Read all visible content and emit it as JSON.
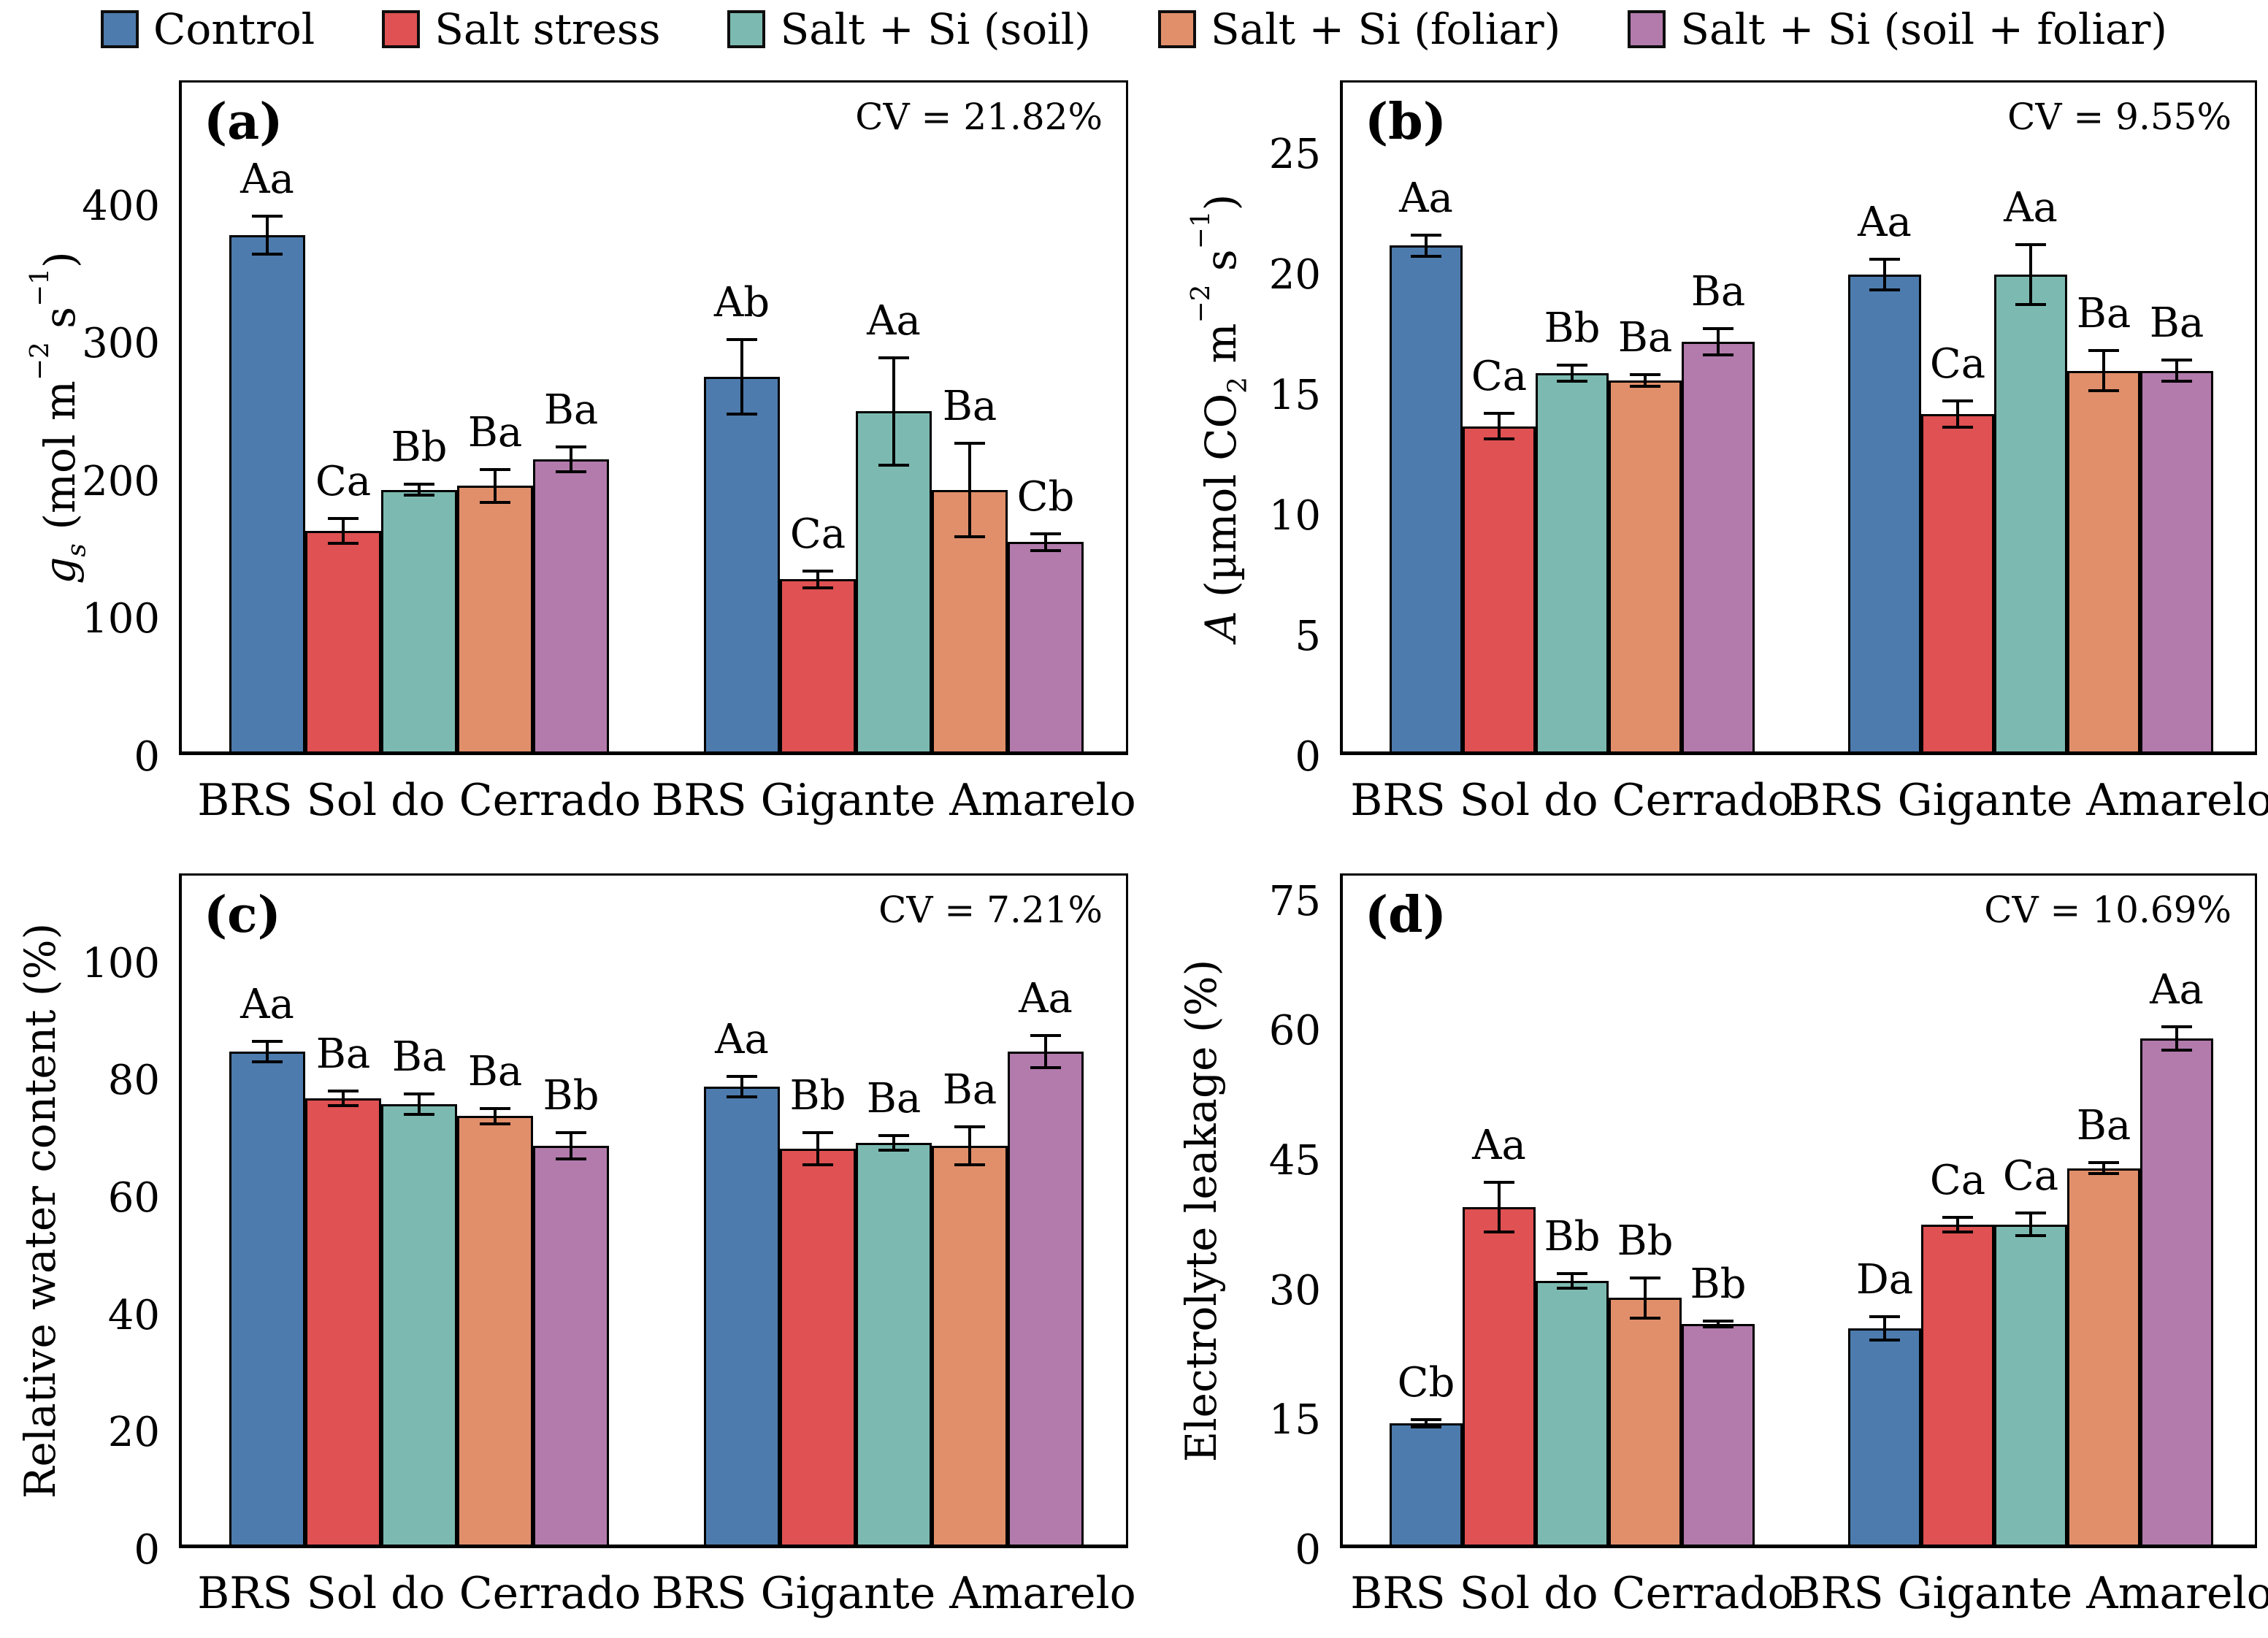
{
  "legend": [
    {
      "label": "Control",
      "color": "#4D7BAD"
    },
    {
      "label": "Salt stress",
      "color": "#DF5152"
    },
    {
      "label": "Salt + Si (soil)",
      "color": "#7CBAB1"
    },
    {
      "label": "Salt + Si (foliar)",
      "color": "#E18F6B"
    },
    {
      "label": "Salt + Si (soil + foliar)",
      "color": "#B27BAC"
    }
  ],
  "chart_data": [
    {
      "id": "a",
      "type": "bar",
      "panel_letter": "(a)",
      "annotation": "CV = 21.82%",
      "ylabel_segments": [
        {
          "t": "g",
          "s": "i"
        },
        {
          "t": "s",
          "s": "isub"
        },
        {
          "t": " (mol m",
          "s": ""
        },
        {
          "t": "−2",
          "s": "sup"
        },
        {
          "t": " s",
          "s": ""
        },
        {
          "t": "−1",
          "s": "sup"
        },
        {
          "t": ")",
          "s": ""
        }
      ],
      "categories": [
        "BRS Sol do Cerrado",
        "BRS Gigante Amarelo"
      ],
      "yticks": [
        0,
        100,
        200,
        300,
        400
      ],
      "ylim": [
        0,
        490
      ],
      "grid": false,
      "series": [
        {
          "name": "Control",
          "values": [
            375,
            272
          ],
          "errors": [
            15,
            28
          ],
          "sig_labels": [
            "Aa",
            "Ab"
          ]
        },
        {
          "name": "Salt stress",
          "values": [
            160,
            125
          ],
          "errors": [
            10,
            7
          ],
          "sig_labels": [
            "Ca",
            "Ca"
          ]
        },
        {
          "name": "Salt + Si (soil)",
          "values": [
            190,
            247
          ],
          "errors": [
            5,
            40
          ],
          "sig_labels": [
            "Bb",
            "Aa"
          ]
        },
        {
          "name": "Salt + Si (foliar)",
          "values": [
            193,
            190
          ],
          "errors": [
            13,
            35
          ],
          "sig_labels": [
            "Ba",
            "Ba"
          ]
        },
        {
          "name": "Salt + Si (soil + foliar)",
          "values": [
            212,
            152
          ],
          "errors": [
            10,
            7
          ],
          "sig_labels": [
            "Ba",
            "Cb"
          ]
        }
      ]
    },
    {
      "id": "b",
      "type": "bar",
      "panel_letter": "(b)",
      "annotation": "CV = 9.55%",
      "ylabel_segments": [
        {
          "t": "A",
          "s": "i"
        },
        {
          "t": " (µmol CO",
          "s": ""
        },
        {
          "t": "2",
          "s": "sub"
        },
        {
          "t": " m",
          "s": ""
        },
        {
          "t": "−2",
          "s": "sup"
        },
        {
          "t": " s",
          "s": ""
        },
        {
          "t": "−1",
          "s": "sup"
        },
        {
          "t": ")",
          "s": ""
        }
      ],
      "categories": [
        "BRS Sol do Cerrado",
        "BRS Gigante Amarelo"
      ],
      "yticks": [
        0,
        5,
        10,
        15,
        20,
        25
      ],
      "ylim": [
        0,
        28
      ],
      "grid": false,
      "series": [
        {
          "name": "Control",
          "values": [
            21.0,
            19.8
          ],
          "errors": [
            0.5,
            0.7
          ],
          "sig_labels": [
            "Aa",
            "Aa"
          ]
        },
        {
          "name": "Salt stress",
          "values": [
            13.5,
            14.0
          ],
          "errors": [
            0.6,
            0.6
          ],
          "sig_labels": [
            "Ca",
            "Ca"
          ]
        },
        {
          "name": "Salt + Si (soil)",
          "values": [
            15.7,
            19.8
          ],
          "errors": [
            0.4,
            1.3
          ],
          "sig_labels": [
            "Bb",
            "Aa"
          ]
        },
        {
          "name": "Salt + Si (foliar)",
          "values": [
            15.4,
            15.8
          ],
          "errors": [
            0.3,
            0.9
          ],
          "sig_labels": [
            "Ba",
            "Ba"
          ]
        },
        {
          "name": "Salt + Si (soil + foliar)",
          "values": [
            17.0,
            15.8
          ],
          "errors": [
            0.6,
            0.5
          ],
          "sig_labels": [
            "Ba",
            "Ba"
          ]
        }
      ]
    },
    {
      "id": "c",
      "type": "bar",
      "panel_letter": "(c)",
      "annotation": "CV = 7.21%",
      "ylabel_segments": [
        {
          "t": "Relative water content (%)",
          "s": ""
        }
      ],
      "categories": [
        "BRS Sol do Cerrado",
        "BRS Gigante Amarelo"
      ],
      "yticks": [
        0,
        20,
        40,
        60,
        80,
        100
      ],
      "ylim": [
        0,
        115
      ],
      "grid": false,
      "series": [
        {
          "name": "Control",
          "values": [
            84,
            78
          ],
          "errors": [
            2,
            2
          ],
          "sig_labels": [
            "Aa",
            "Aa"
          ]
        },
        {
          "name": "Salt stress",
          "values": [
            76,
            67.5
          ],
          "errors": [
            1.5,
            3
          ],
          "sig_labels": [
            "Ba",
            "Bb"
          ]
        },
        {
          "name": "Salt + Si (soil)",
          "values": [
            75,
            68.5
          ],
          "errors": [
            2,
            1.5
          ],
          "sig_labels": [
            "Ba",
            "Ba"
          ]
        },
        {
          "name": "Salt + Si (foliar)",
          "values": [
            73,
            68
          ],
          "errors": [
            1.5,
            3.5
          ],
          "sig_labels": [
            "Ba",
            "Ba"
          ]
        },
        {
          "name": "Salt + Si (soil + foliar)",
          "values": [
            68,
            84
          ],
          "errors": [
            2.5,
            3
          ],
          "sig_labels": [
            "Bb",
            "Aa"
          ]
        }
      ]
    },
    {
      "id": "d",
      "type": "bar",
      "panel_letter": "(d)",
      "annotation": "CV = 10.69%",
      "ylabel_segments": [
        {
          "t": "Electrolyte leakage (%)",
          "s": ""
        }
      ],
      "categories": [
        "BRS Sol do Cerrado",
        "BRS Gigante Amarelo"
      ],
      "yticks": [
        0,
        15,
        30,
        45,
        60,
        75
      ],
      "ylim": [
        0,
        78
      ],
      "grid": false,
      "series": [
        {
          "name": "Control",
          "values": [
            14,
            25
          ],
          "errors": [
            0.6,
            1.5
          ],
          "sig_labels": [
            "Cb",
            "Da"
          ]
        },
        {
          "name": "Salt stress",
          "values": [
            39,
            37
          ],
          "errors": [
            3,
            1
          ],
          "sig_labels": [
            "Aa",
            "Ca"
          ]
        },
        {
          "name": "Salt + Si (soil)",
          "values": [
            30.5,
            37
          ],
          "errors": [
            1,
            1.5
          ],
          "sig_labels": [
            "Bb",
            "Ca"
          ]
        },
        {
          "name": "Salt + Si (foliar)",
          "values": [
            28.5,
            43.5
          ],
          "errors": [
            2.5,
            0.8
          ],
          "sig_labels": [
            "Bb",
            "Ba"
          ]
        },
        {
          "name": "Salt + Si (soil + foliar)",
          "values": [
            25.5,
            58.5
          ],
          "errors": [
            0.5,
            1.5
          ],
          "sig_labels": [
            "Bb",
            "Aa"
          ]
        }
      ]
    }
  ]
}
